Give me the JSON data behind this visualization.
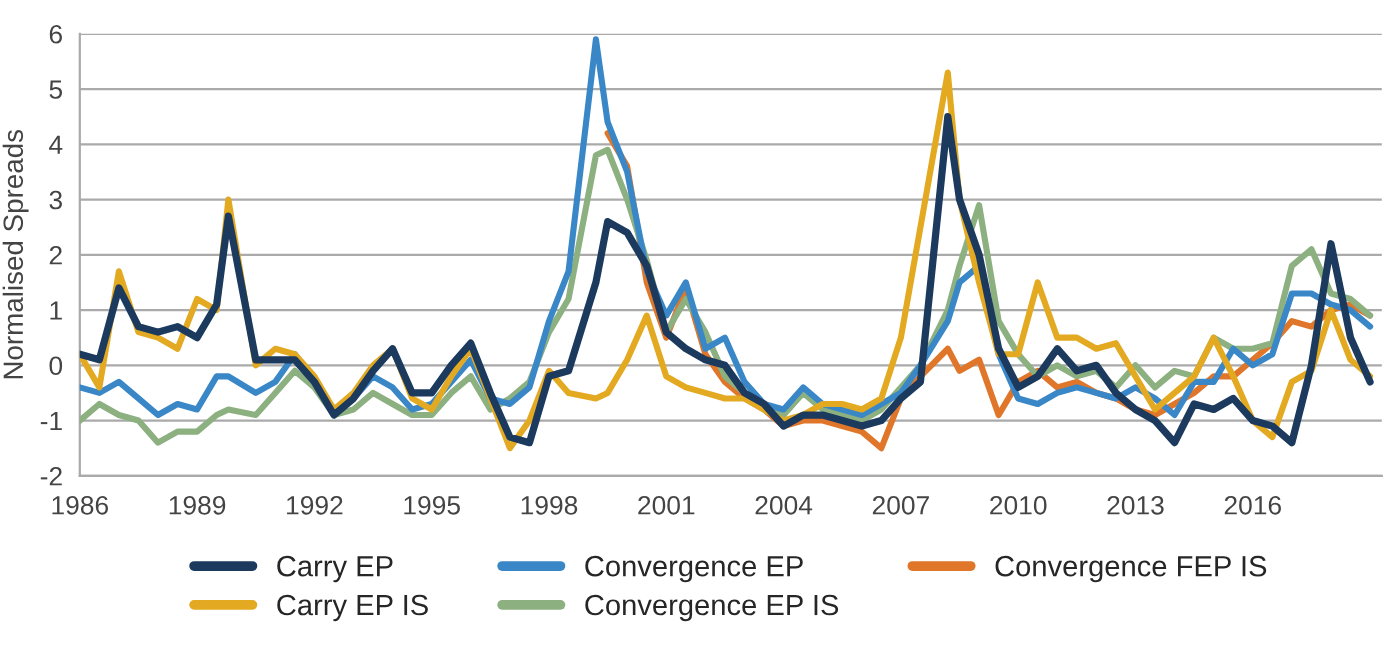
{
  "chart_data": {
    "type": "line",
    "ylabel": "Normalised Spreads",
    "x": [
      1986,
      1986.5,
      1987,
      1987.5,
      1988,
      1988.5,
      1989,
      1989.5,
      1989.8,
      1990.5,
      1991,
      1991.5,
      1992,
      1992.5,
      1993,
      1993.5,
      1994,
      1994.5,
      1995,
      1995.5,
      1996,
      1996.5,
      1997,
      1997.5,
      1998,
      1998.5,
      1999.2,
      1999.5,
      2000,
      2000.5,
      2001,
      2001.5,
      2002,
      2002.5,
      2003,
      2003.5,
      2004,
      2004.5,
      2005,
      2005.5,
      2006,
      2006.5,
      2007,
      2007.5,
      2008.2,
      2008.5,
      2009,
      2009.5,
      2010,
      2010.5,
      2011,
      2011.5,
      2012,
      2012.5,
      2013,
      2013.5,
      2014,
      2014.5,
      2015,
      2015.5,
      2016,
      2016.5,
      2017,
      2017.5,
      2018,
      2018.5,
      2019
    ],
    "series": [
      {
        "name": "Carry EP",
        "color": "#1b3a5e",
        "values": [
          0.2,
          0.1,
          1.4,
          0.7,
          0.6,
          0.7,
          0.5,
          1.1,
          2.7,
          0.1,
          0.1,
          0.1,
          -0.3,
          -0.9,
          -0.6,
          -0.1,
          0.3,
          -0.5,
          -0.5,
          0,
          0.4,
          -0.5,
          -1.3,
          -1.4,
          -0.2,
          -0.1,
          1.5,
          2.6,
          2.4,
          1.8,
          0.6,
          0.3,
          0.1,
          0,
          -0.5,
          -0.7,
          -1.1,
          -0.9,
          -0.9,
          -1.0,
          -1.1,
          -1.0,
          -0.6,
          -0.3,
          4.5,
          3.0,
          2.0,
          0.3,
          -0.4,
          -0.2,
          0.3,
          -0.1,
          0,
          -0.5,
          -0.8,
          -1.0,
          -1.4,
          -0.7,
          -0.8,
          -0.6,
          -1.0,
          -1.1,
          -1.4,
          0,
          2.2,
          0.5,
          -0.3
        ]
      },
      {
        "name": "Carry EP IS",
        "color": "#e3a921",
        "values": [
          0.2,
          -0.4,
          1.7,
          0.6,
          0.5,
          0.3,
          1.2,
          1.0,
          3.0,
          0,
          0.3,
          0.2,
          -0.2,
          -0.8,
          -0.5,
          0,
          0.3,
          -0.6,
          -0.8,
          -0.2,
          0.3,
          -0.6,
          -1.5,
          -1.0,
          -0.1,
          -0.5,
          -0.6,
          -0.5,
          0.1,
          0.9,
          -0.2,
          -0.4,
          -0.5,
          -0.6,
          -0.6,
          -0.8,
          -1.0,
          -0.9,
          -0.7,
          -0.7,
          -0.8,
          -0.6,
          0.5,
          2.5,
          5.3,
          3.0,
          1.5,
          0.2,
          0.2,
          1.5,
          0.5,
          0.5,
          0.3,
          0.4,
          -0.2,
          -0.8,
          -0.5,
          -0.2,
          0.5,
          -0.2,
          -1.0,
          -1.3,
          -0.3,
          -0.1,
          1.0,
          0.1,
          -0.2
        ]
      },
      {
        "name": "Convergence EP",
        "color": "#3a87c8",
        "values": [
          -0.4,
          -0.5,
          -0.3,
          -0.6,
          -0.9,
          -0.7,
          -0.8,
          -0.2,
          -0.2,
          -0.5,
          -0.3,
          0.2,
          -0.3,
          -0.8,
          -0.6,
          -0.2,
          -0.4,
          -0.8,
          -0.7,
          -0.3,
          0.1,
          -0.6,
          -0.7,
          -0.4,
          0.8,
          1.7,
          5.9,
          4.4,
          3.5,
          1.7,
          0.9,
          1.5,
          0.3,
          0.5,
          -0.3,
          -0.7,
          -0.8,
          -0.4,
          -0.7,
          -0.8,
          -0.9,
          -0.7,
          -0.5,
          0,
          0.8,
          1.5,
          1.8,
          0.2,
          -0.6,
          -0.7,
          -0.5,
          -0.4,
          -0.5,
          -0.6,
          -0.4,
          -0.6,
          -0.9,
          -0.3,
          -0.3,
          0.3,
          0.0,
          0.2,
          1.3,
          1.3,
          1.1,
          1.0,
          0.7
        ]
      },
      {
        "name": "Convergence EP IS",
        "color": "#8cb07f",
        "values": [
          -1.0,
          -0.7,
          -0.9,
          -1.0,
          -1.4,
          -1.2,
          -1.2,
          -0.9,
          -0.8,
          -0.9,
          -0.5,
          -0.1,
          -0.4,
          -0.9,
          -0.8,
          -0.5,
          -0.7,
          -0.9,
          -0.9,
          -0.5,
          -0.2,
          -0.8,
          -0.6,
          -0.3,
          0.6,
          1.2,
          3.8,
          3.9,
          3.0,
          1.9,
          0.6,
          1.2,
          0.6,
          -0.2,
          -0.5,
          -0.8,
          -0.9,
          -0.5,
          -0.8,
          -0.9,
          -1.0,
          -0.8,
          -0.4,
          0,
          1.0,
          1.8,
          2.9,
          0.8,
          0.2,
          -0.2,
          0,
          -0.2,
          -0.1,
          -0.4,
          0,
          -0.4,
          -0.1,
          -0.2,
          0.5,
          0.3,
          0.3,
          0.4,
          1.8,
          2.1,
          1.3,
          1.2,
          0.9
        ]
      },
      {
        "name": "Convergence FEP IS",
        "color": "#e0762a",
        "values": [
          null,
          null,
          null,
          null,
          null,
          null,
          null,
          null,
          null,
          null,
          null,
          null,
          null,
          null,
          null,
          null,
          null,
          null,
          null,
          null,
          null,
          null,
          null,
          null,
          null,
          null,
          null,
          4.2,
          3.6,
          1.5,
          0.5,
          1.4,
          0.2,
          -0.3,
          -0.6,
          -0.8,
          -1.1,
          -1.0,
          -1.0,
          -1.1,
          -1.2,
          -1.5,
          -0.6,
          -0.2,
          0.3,
          -0.1,
          0.1,
          -0.9,
          -0.3,
          -0.1,
          -0.4,
          -0.3,
          -0.5,
          -0.6,
          -0.8,
          -0.9,
          -0.7,
          -0.5,
          -0.2,
          -0.2,
          0.1,
          0.4,
          0.8,
          0.7,
          1.0,
          1.1,
          0.9
        ]
      }
    ],
    "xlim": [
      1986,
      2019.3
    ],
    "xticks": [
      1986,
      1989,
      1992,
      1995,
      1998,
      2001,
      2004,
      2007,
      2010,
      2013,
      2016
    ],
    "ylim": [
      -2,
      6
    ],
    "yticks": [
      -2,
      -1,
      0,
      1,
      2,
      3,
      4,
      5,
      6
    ],
    "grid": "y",
    "legend": "bottom",
    "line_style": "solid",
    "marker": "none"
  }
}
